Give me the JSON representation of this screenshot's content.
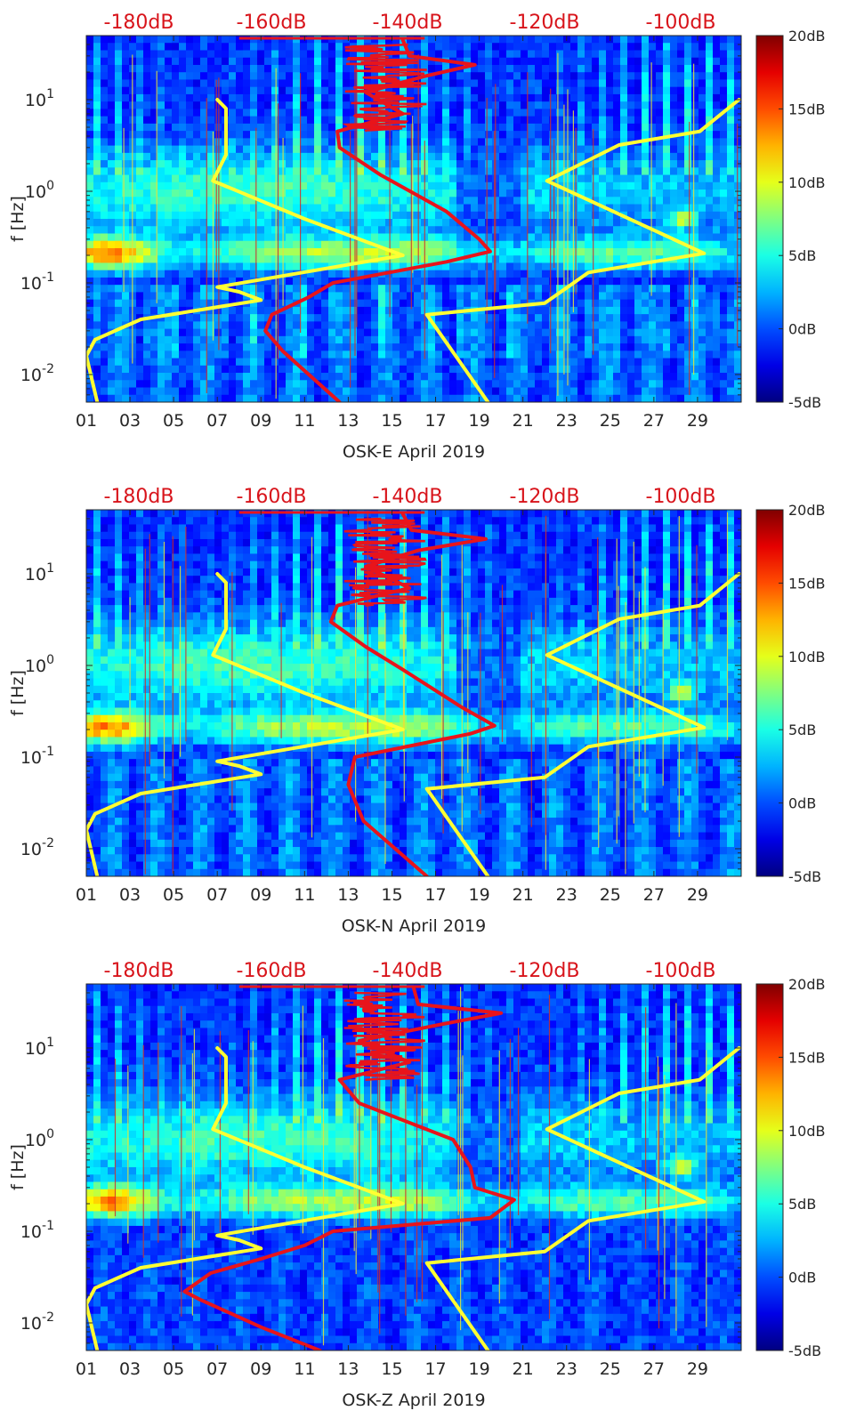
{
  "chart_data": [
    {
      "type": "heatmap",
      "station": "OSK-E",
      "title": "OSK-E April 2019",
      "xlabel": "OSK-E April 2019",
      "ylabel": "f [Hz]",
      "x_ticks": [
        "01",
        "03",
        "05",
        "07",
        "09",
        "11",
        "13",
        "15",
        "17",
        "19",
        "21",
        "23",
        "25",
        "27",
        "29"
      ],
      "x_tick_values": [
        1,
        3,
        5,
        7,
        9,
        11,
        13,
        15,
        17,
        19,
        21,
        23,
        25,
        27,
        29
      ],
      "x_range": [
        1,
        31
      ],
      "y_ticks": [
        {
          "base": "10",
          "exp": "1",
          "value": 10
        },
        {
          "base": "10",
          "exp": "0",
          "value": 1
        },
        {
          "base": "10",
          "exp": "-1",
          "value": 0.1
        },
        {
          "base": "10",
          "exp": "-2",
          "value": 0.01
        }
      ],
      "y_scale": "log",
      "y_range": [
        0.005,
        50
      ],
      "colorbar": {
        "labels": [
          "20dB",
          "15dB",
          "10dB",
          "5dB",
          "0dB",
          "-5dB"
        ],
        "range_dB": [
          -5,
          20
        ]
      },
      "top_axis_labels": [
        "-180dB",
        "-160dB",
        "-140dB",
        "-120dB",
        "-100dB"
      ],
      "overlay_curves": [
        {
          "name": "yellow-noise-model-low",
          "color": "#ffff33",
          "points": [
            [
              1.5,
              0.005
            ],
            [
              1.0,
              0.016
            ],
            [
              1.4,
              0.024
            ],
            [
              3.5,
              0.04
            ],
            [
              9.0,
              0.065
            ],
            [
              8.0,
              0.08
            ],
            [
              7.0,
              0.09
            ],
            [
              15.5,
              0.2
            ],
            [
              11,
              0.5
            ],
            [
              6.8,
              1.3
            ],
            [
              7.4,
              2.5
            ],
            [
              7.4,
              8
            ],
            [
              7.0,
              10
            ]
          ]
        },
        {
          "name": "yellow-noise-model-high",
          "color": "#ffff33",
          "points": [
            [
              19.4,
              0.005
            ],
            [
              16.6,
              0.045
            ],
            [
              22,
              0.06
            ],
            [
              24,
              0.13
            ],
            [
              29.3,
              0.21
            ],
            [
              22.1,
              1.3
            ],
            [
              25.4,
              3.2
            ],
            [
              29.1,
              4.5
            ],
            [
              30.9,
              10
            ]
          ]
        },
        {
          "name": "red-median-psd",
          "color": "#e8141b",
          "points": [
            [
              12.6,
              0.005
            ],
            [
              10,
              0.018
            ],
            [
              9.2,
              0.03
            ],
            [
              9.5,
              0.045
            ],
            [
              11.2,
              0.07
            ],
            [
              12.3,
              0.1
            ],
            [
              17.5,
              0.17
            ],
            [
              19.5,
              0.22
            ],
            [
              19.0,
              0.3
            ],
            [
              17.5,
              0.6
            ],
            [
              14.5,
              1.5
            ],
            [
              12.6,
              3
            ],
            [
              12.5,
              4.5
            ],
            [
              15.5,
              7
            ],
            [
              13.8,
              12
            ],
            [
              16.5,
              18
            ],
            [
              18.8,
              24
            ],
            [
              15.8,
              30
            ],
            [
              15.5,
              45
            ]
          ]
        }
      ]
    },
    {
      "type": "heatmap",
      "station": "OSK-N",
      "title": "OSK-N April 2019",
      "xlabel": "OSK-N April 2019",
      "ylabel": "f [Hz]",
      "x_ticks": [
        "01",
        "03",
        "05",
        "07",
        "09",
        "11",
        "13",
        "15",
        "17",
        "19",
        "21",
        "23",
        "25",
        "27",
        "29"
      ],
      "x_tick_values": [
        1,
        3,
        5,
        7,
        9,
        11,
        13,
        15,
        17,
        19,
        21,
        23,
        25,
        27,
        29
      ],
      "x_range": [
        1,
        31
      ],
      "y_ticks": [
        {
          "base": "10",
          "exp": "1",
          "value": 10
        },
        {
          "base": "10",
          "exp": "0",
          "value": 1
        },
        {
          "base": "10",
          "exp": "-1",
          "value": 0.1
        },
        {
          "base": "10",
          "exp": "-2",
          "value": 0.01
        }
      ],
      "y_scale": "log",
      "y_range": [
        0.005,
        50
      ],
      "colorbar": {
        "labels": [
          "20dB",
          "15dB",
          "10dB",
          "5dB",
          "0dB",
          "-5dB"
        ],
        "range_dB": [
          -5,
          20
        ]
      },
      "top_axis_labels": [
        "-180dB",
        "-160dB",
        "-140dB",
        "-120dB",
        "-100dB"
      ],
      "overlay_curves": [
        {
          "name": "yellow-noise-model-low",
          "color": "#ffff33",
          "points": [
            [
              1.5,
              0.005
            ],
            [
              1.0,
              0.016
            ],
            [
              1.4,
              0.024
            ],
            [
              3.5,
              0.04
            ],
            [
              9.0,
              0.065
            ],
            [
              8.0,
              0.08
            ],
            [
              7.0,
              0.09
            ],
            [
              15.5,
              0.2
            ],
            [
              11,
              0.5
            ],
            [
              6.8,
              1.3
            ],
            [
              7.4,
              2.5
            ],
            [
              7.4,
              8
            ],
            [
              7.0,
              10
            ]
          ]
        },
        {
          "name": "yellow-noise-model-high",
          "color": "#ffff33",
          "points": [
            [
              19.4,
              0.005
            ],
            [
              16.6,
              0.045
            ],
            [
              22,
              0.06
            ],
            [
              24,
              0.13
            ],
            [
              29.3,
              0.21
            ],
            [
              22.1,
              1.3
            ],
            [
              25.4,
              3.2
            ],
            [
              29.1,
              4.5
            ],
            [
              30.9,
              10
            ]
          ]
        },
        {
          "name": "red-median-psd",
          "color": "#e8141b",
          "points": [
            [
              16.6,
              0.005
            ],
            [
              13.7,
              0.02
            ],
            [
              13.0,
              0.05
            ],
            [
              13.3,
              0.1
            ],
            [
              18.6,
              0.18
            ],
            [
              19.7,
              0.22
            ],
            [
              18.2,
              0.35
            ],
            [
              15.5,
              0.9
            ],
            [
              13.8,
              1.6
            ],
            [
              12.2,
              3
            ],
            [
              12.5,
              4.5
            ],
            [
              15.8,
              7
            ],
            [
              13.8,
              12
            ],
            [
              16.2,
              18
            ],
            [
              19.3,
              24
            ],
            [
              15.9,
              30
            ],
            [
              15.5,
              45
            ]
          ]
        }
      ]
    },
    {
      "type": "heatmap",
      "station": "OSK-Z",
      "title": "OSK-Z April 2019",
      "xlabel": "OSK-Z April 2019",
      "ylabel": "f [Hz]",
      "x_ticks": [
        "01",
        "03",
        "05",
        "07",
        "09",
        "11",
        "13",
        "15",
        "17",
        "19",
        "21",
        "23",
        "25",
        "27",
        "29"
      ],
      "x_tick_values": [
        1,
        3,
        5,
        7,
        9,
        11,
        13,
        15,
        17,
        19,
        21,
        23,
        25,
        27,
        29
      ],
      "x_range": [
        1,
        31
      ],
      "y_ticks": [
        {
          "base": "10",
          "exp": "1",
          "value": 10
        },
        {
          "base": "10",
          "exp": "0",
          "value": 1
        },
        {
          "base": "10",
          "exp": "-1",
          "value": 0.1
        },
        {
          "base": "10",
          "exp": "-2",
          "value": 0.01
        }
      ],
      "y_scale": "log",
      "y_range": [
        0.005,
        50
      ],
      "colorbar": {
        "labels": [
          "20dB",
          "15dB",
          "10dB",
          "5dB",
          "0dB",
          "-5dB"
        ],
        "range_dB": [
          -5,
          20
        ]
      },
      "top_axis_labels": [
        "-180dB",
        "-160dB",
        "-140dB",
        "-120dB",
        "-100dB"
      ],
      "overlay_curves": [
        {
          "name": "yellow-noise-model-low",
          "color": "#ffff33",
          "points": [
            [
              1.5,
              0.005
            ],
            [
              1.0,
              0.016
            ],
            [
              1.4,
              0.024
            ],
            [
              3.5,
              0.04
            ],
            [
              9.0,
              0.065
            ],
            [
              8.0,
              0.08
            ],
            [
              7.0,
              0.09
            ],
            [
              15.5,
              0.2
            ],
            [
              11,
              0.5
            ],
            [
              6.8,
              1.3
            ],
            [
              7.4,
              2.5
            ],
            [
              7.4,
              8
            ],
            [
              7.0,
              10
            ]
          ]
        },
        {
          "name": "yellow-noise-model-high",
          "color": "#ffff33",
          "points": [
            [
              19.4,
              0.005
            ],
            [
              16.6,
              0.045
            ],
            [
              22,
              0.06
            ],
            [
              24,
              0.13
            ],
            [
              29.3,
              0.21
            ],
            [
              22.1,
              1.3
            ],
            [
              25.4,
              3.2
            ],
            [
              29.1,
              4.5
            ],
            [
              30.9,
              10
            ]
          ]
        },
        {
          "name": "red-median-psd",
          "color": "#e8141b",
          "points": [
            [
              11.7,
              0.005
            ],
            [
              9.0,
              0.009
            ],
            [
              6.2,
              0.018
            ],
            [
              5.5,
              0.022
            ],
            [
              6.7,
              0.035
            ],
            [
              9.0,
              0.05
            ],
            [
              11.0,
              0.07
            ],
            [
              12.3,
              0.1
            ],
            [
              19.5,
              0.14
            ],
            [
              20.6,
              0.22
            ],
            [
              18.8,
              0.3
            ],
            [
              18.6,
              0.5
            ],
            [
              17.8,
              1.0
            ],
            [
              13.5,
              2.5
            ],
            [
              12.6,
              4.5
            ],
            [
              15.8,
              7
            ],
            [
              13.5,
              12
            ],
            [
              17.2,
              18
            ],
            [
              20.0,
              24
            ],
            [
              16.2,
              30
            ],
            [
              16.0,
              45
            ]
          ]
        }
      ]
    }
  ]
}
